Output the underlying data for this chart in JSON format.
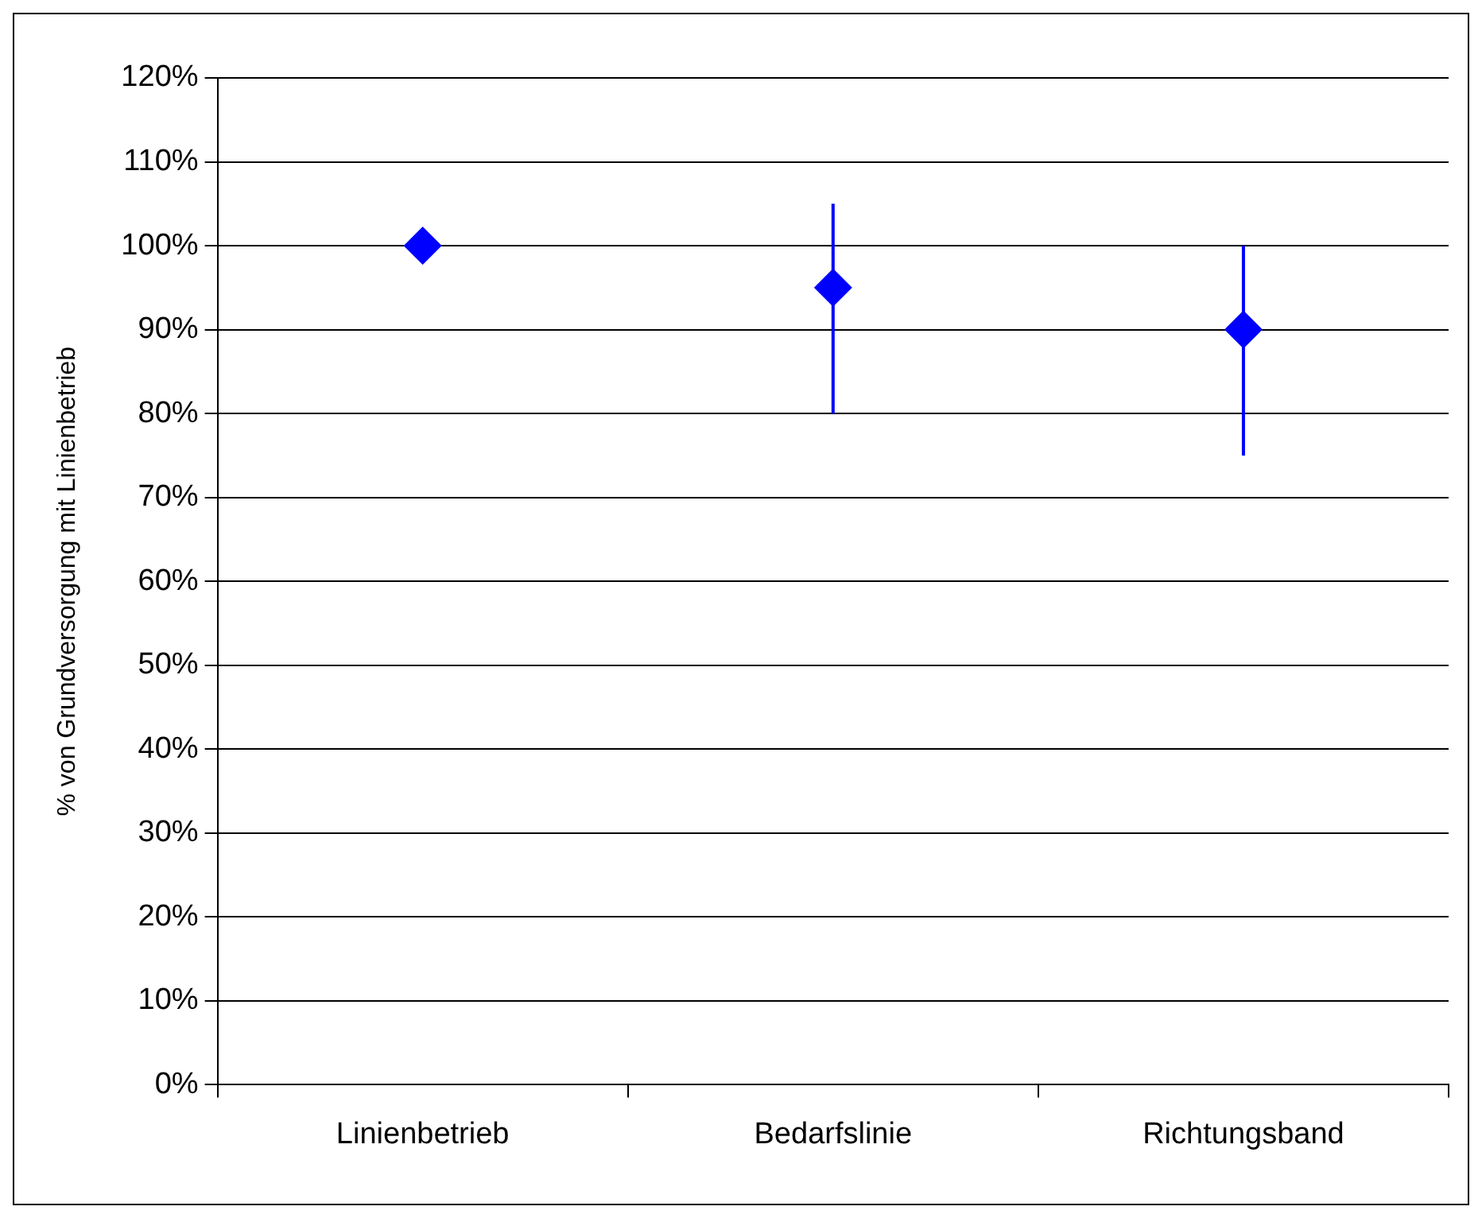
{
  "chart_data": {
    "type": "scatter",
    "ylabel": "% von Grundversorgung mit Linienbetrieb",
    "categories": [
      "Linienbetrieb",
      "Bedarfslinie",
      "Richtungsband"
    ],
    "values": [
      100,
      95,
      90
    ],
    "errors": [
      null,
      [
        80,
        105
      ],
      [
        75,
        100
      ]
    ],
    "color": "#0000ff",
    "marker": "diamond",
    "ylim": [
      0,
      120
    ],
    "yticks": [
      {
        "value": 0,
        "label": "0%"
      },
      {
        "value": 10,
        "label": "10%"
      },
      {
        "value": 20,
        "label": "20%"
      },
      {
        "value": 30,
        "label": "30%"
      },
      {
        "value": 40,
        "label": "40%"
      },
      {
        "value": 50,
        "label": "50%"
      },
      {
        "value": 60,
        "label": "60%"
      },
      {
        "value": 70,
        "label": "70%"
      },
      {
        "value": 80,
        "label": "80%"
      },
      {
        "value": 90,
        "label": "90%"
      },
      {
        "value": 100,
        "label": "100%"
      },
      {
        "value": 110,
        "label": "110%"
      },
      {
        "value": 120,
        "label": "120%"
      }
    ],
    "grid": "y",
    "legend": false
  }
}
